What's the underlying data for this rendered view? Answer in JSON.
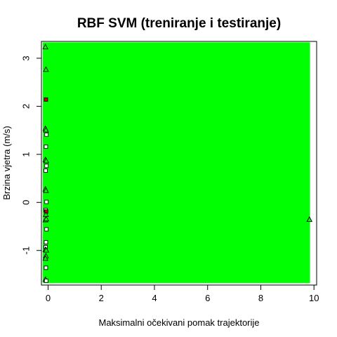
{
  "chart_data": {
    "type": "scatter",
    "title": "RBF SVM (treniranje i testiranje)",
    "xlabel": "Maksimalni očekivani pomak trajektorije",
    "ylabel": "Brzina vjetra (m/s)",
    "xlim": [
      -0.25,
      10.1
    ],
    "ylim": [
      -1.72,
      3.35
    ],
    "x_ticks": [
      0,
      2,
      4,
      6,
      8,
      10
    ],
    "y_ticks": [
      -1,
      0,
      1,
      2,
      3
    ],
    "grid": false,
    "legend": "none",
    "decision_region": {
      "x_range": [
        -0.2,
        9.85
      ],
      "y_range": [
        -1.68,
        3.33
      ],
      "color": "#00ff00"
    },
    "colors": {
      "region": "#00ff00",
      "point_fill_square": "#ffffff",
      "point_fill_triangle": "#00ff00",
      "point_fill_highlight": "#cc0000",
      "point_stroke": "#000000"
    },
    "points": [
      {
        "x": -0.1,
        "y": 3.23,
        "shape": "triangle",
        "highlight": false
      },
      {
        "x": -0.08,
        "y": 2.76,
        "shape": "triangle",
        "highlight": false
      },
      {
        "x": -0.08,
        "y": 2.14,
        "shape": "square",
        "highlight": true
      },
      {
        "x": -0.1,
        "y": 1.53,
        "shape": "triangle",
        "highlight": false
      },
      {
        "x": -0.08,
        "y": 1.5,
        "shape": "triangle",
        "highlight": false
      },
      {
        "x": -0.06,
        "y": 1.41,
        "shape": "square",
        "highlight": false
      },
      {
        "x": -0.08,
        "y": 1.16,
        "shape": "square",
        "highlight": false
      },
      {
        "x": -0.1,
        "y": 0.88,
        "shape": "triangle",
        "highlight": false
      },
      {
        "x": -0.07,
        "y": 0.86,
        "shape": "triangle",
        "highlight": false
      },
      {
        "x": -0.06,
        "y": 0.76,
        "shape": "square",
        "highlight": false
      },
      {
        "x": -0.09,
        "y": 0.66,
        "shape": "square",
        "highlight": false
      },
      {
        "x": -0.1,
        "y": 0.27,
        "shape": "triangle",
        "highlight": false
      },
      {
        "x": -0.08,
        "y": 0.24,
        "shape": "triangle",
        "highlight": false
      },
      {
        "x": -0.06,
        "y": 0.01,
        "shape": "square",
        "highlight": false
      },
      {
        "x": -0.09,
        "y": -0.16,
        "shape": "square",
        "highlight": false
      },
      {
        "x": -0.07,
        "y": -0.19,
        "shape": "square",
        "highlight": true
      },
      {
        "x": -0.08,
        "y": -0.26,
        "shape": "triangle",
        "highlight": false
      },
      {
        "x": -0.1,
        "y": -0.37,
        "shape": "triangle",
        "highlight": false
      },
      {
        "x": -0.07,
        "y": -0.35,
        "shape": "triangle",
        "highlight": false
      },
      {
        "x": -0.06,
        "y": -0.56,
        "shape": "square",
        "highlight": false
      },
      {
        "x": -0.08,
        "y": -0.83,
        "shape": "square",
        "highlight": false
      },
      {
        "x": -0.09,
        "y": -0.93,
        "shape": "square",
        "highlight": false
      },
      {
        "x": -0.1,
        "y": -0.99,
        "shape": "triangle",
        "highlight": false
      },
      {
        "x": -0.07,
        "y": -1.0,
        "shape": "triangle",
        "highlight": false
      },
      {
        "x": -0.08,
        "y": -1.12,
        "shape": "triangle",
        "highlight": false
      },
      {
        "x": -0.1,
        "y": -1.17,
        "shape": "triangle",
        "highlight": false
      },
      {
        "x": -0.08,
        "y": -1.36,
        "shape": "square",
        "highlight": false
      },
      {
        "x": -0.1,
        "y": -1.61,
        "shape": "triangle",
        "highlight": false
      },
      {
        "x": -0.07,
        "y": -1.63,
        "shape": "square",
        "highlight": false
      },
      {
        "x": 9.83,
        "y": -0.36,
        "shape": "triangle",
        "highlight": false
      }
    ]
  }
}
